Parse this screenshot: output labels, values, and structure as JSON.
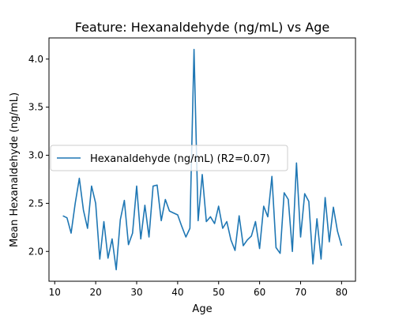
{
  "chart_data": {
    "type": "line",
    "title": "Feature: Hexanaldehyde (ng/mL) vs Age",
    "xlabel": "Age",
    "ylabel": "Mean Hexanaldehyde (ng/mL)",
    "xlim": [
      8.6,
      83.4
    ],
    "ylim": [
      1.69,
      4.22
    ],
    "xticks": [
      10,
      20,
      30,
      40,
      50,
      60,
      70,
      80
    ],
    "yticks": [
      2.0,
      2.5,
      3.0,
      3.5,
      4.0
    ],
    "xtick_labels": [
      "10",
      "20",
      "30",
      "40",
      "50",
      "60",
      "70",
      "80"
    ],
    "ytick_labels": [
      "2.0",
      "2.5",
      "3.0",
      "3.5",
      "4.0"
    ],
    "grid": false,
    "legend_position": "center-left",
    "series": [
      {
        "name": "Hexanaldehyde (ng/mL) (R2=0.07)",
        "color": "#1f77b4",
        "x": [
          12,
          13,
          14,
          15,
          16,
          17,
          18,
          19,
          20,
          21,
          22,
          23,
          24,
          25,
          26,
          27,
          28,
          29,
          30,
          31,
          32,
          33,
          34,
          35,
          36,
          37,
          38,
          39,
          40,
          41,
          42,
          43,
          44,
          45,
          46,
          47,
          48,
          49,
          50,
          51,
          52,
          53,
          54,
          55,
          56,
          57,
          58,
          59,
          60,
          61,
          62,
          63,
          64,
          65,
          66,
          67,
          68,
          69,
          70,
          71,
          72,
          73,
          74,
          75,
          76,
          77,
          78,
          79,
          80
        ],
        "y": [
          2.37,
          2.35,
          2.19,
          2.5,
          2.76,
          2.43,
          2.24,
          2.68,
          2.5,
          1.92,
          2.31,
          1.93,
          2.13,
          1.81,
          2.33,
          2.53,
          2.07,
          2.19,
          2.68,
          2.13,
          2.48,
          2.15,
          2.68,
          2.69,
          2.32,
          2.54,
          2.42,
          2.4,
          2.38,
          2.26,
          2.15,
          2.24,
          4.1,
          2.32,
          2.8,
          2.31,
          2.36,
          2.29,
          2.47,
          2.24,
          2.31,
          2.12,
          2.01,
          2.37,
          2.06,
          2.12,
          2.16,
          2.31,
          2.03,
          2.47,
          2.36,
          2.78,
          2.04,
          1.98,
          2.61,
          2.54,
          2.0,
          2.92,
          2.15,
          2.6,
          2.52,
          1.87,
          2.34,
          1.92,
          2.56,
          2.1,
          2.46,
          2.21,
          2.06
        ]
      }
    ]
  }
}
